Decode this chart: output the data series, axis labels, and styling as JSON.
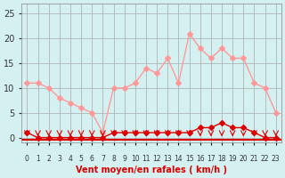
{
  "hours": [
    0,
    1,
    2,
    3,
    4,
    5,
    6,
    7,
    8,
    9,
    10,
    11,
    12,
    13,
    14,
    15,
    16,
    17,
    18,
    19,
    20,
    21,
    22,
    23
  ],
  "wind_avg": [
    1,
    0,
    0,
    0,
    0,
    0,
    0,
    0,
    1,
    1,
    1,
    1,
    1,
    1,
    1,
    1,
    2,
    2,
    3,
    2,
    2,
    1,
    0,
    0
  ],
  "wind_gust": [
    11,
    11,
    10,
    8,
    7,
    6,
    5,
    1,
    10,
    10,
    11,
    14,
    13,
    16,
    11,
    21,
    18,
    16,
    18,
    16,
    16,
    11,
    10,
    5
  ],
  "line_avg_color": "#dd0000",
  "line_gust_color": "#ff9999",
  "marker_color": "#dd0000",
  "marker_gust_color": "#ff9999",
  "bg_color": "#d4f0f0",
  "grid_color": "#aaaaaa",
  "xlabel": "Vent moyen/en rafales ( km/h )",
  "xlabel_color": "#dd0000",
  "yticks": [
    0,
    5,
    10,
    15,
    20,
    25
  ],
  "ylim": [
    -1,
    27
  ],
  "xlim": [
    -0.5,
    23.5
  ]
}
